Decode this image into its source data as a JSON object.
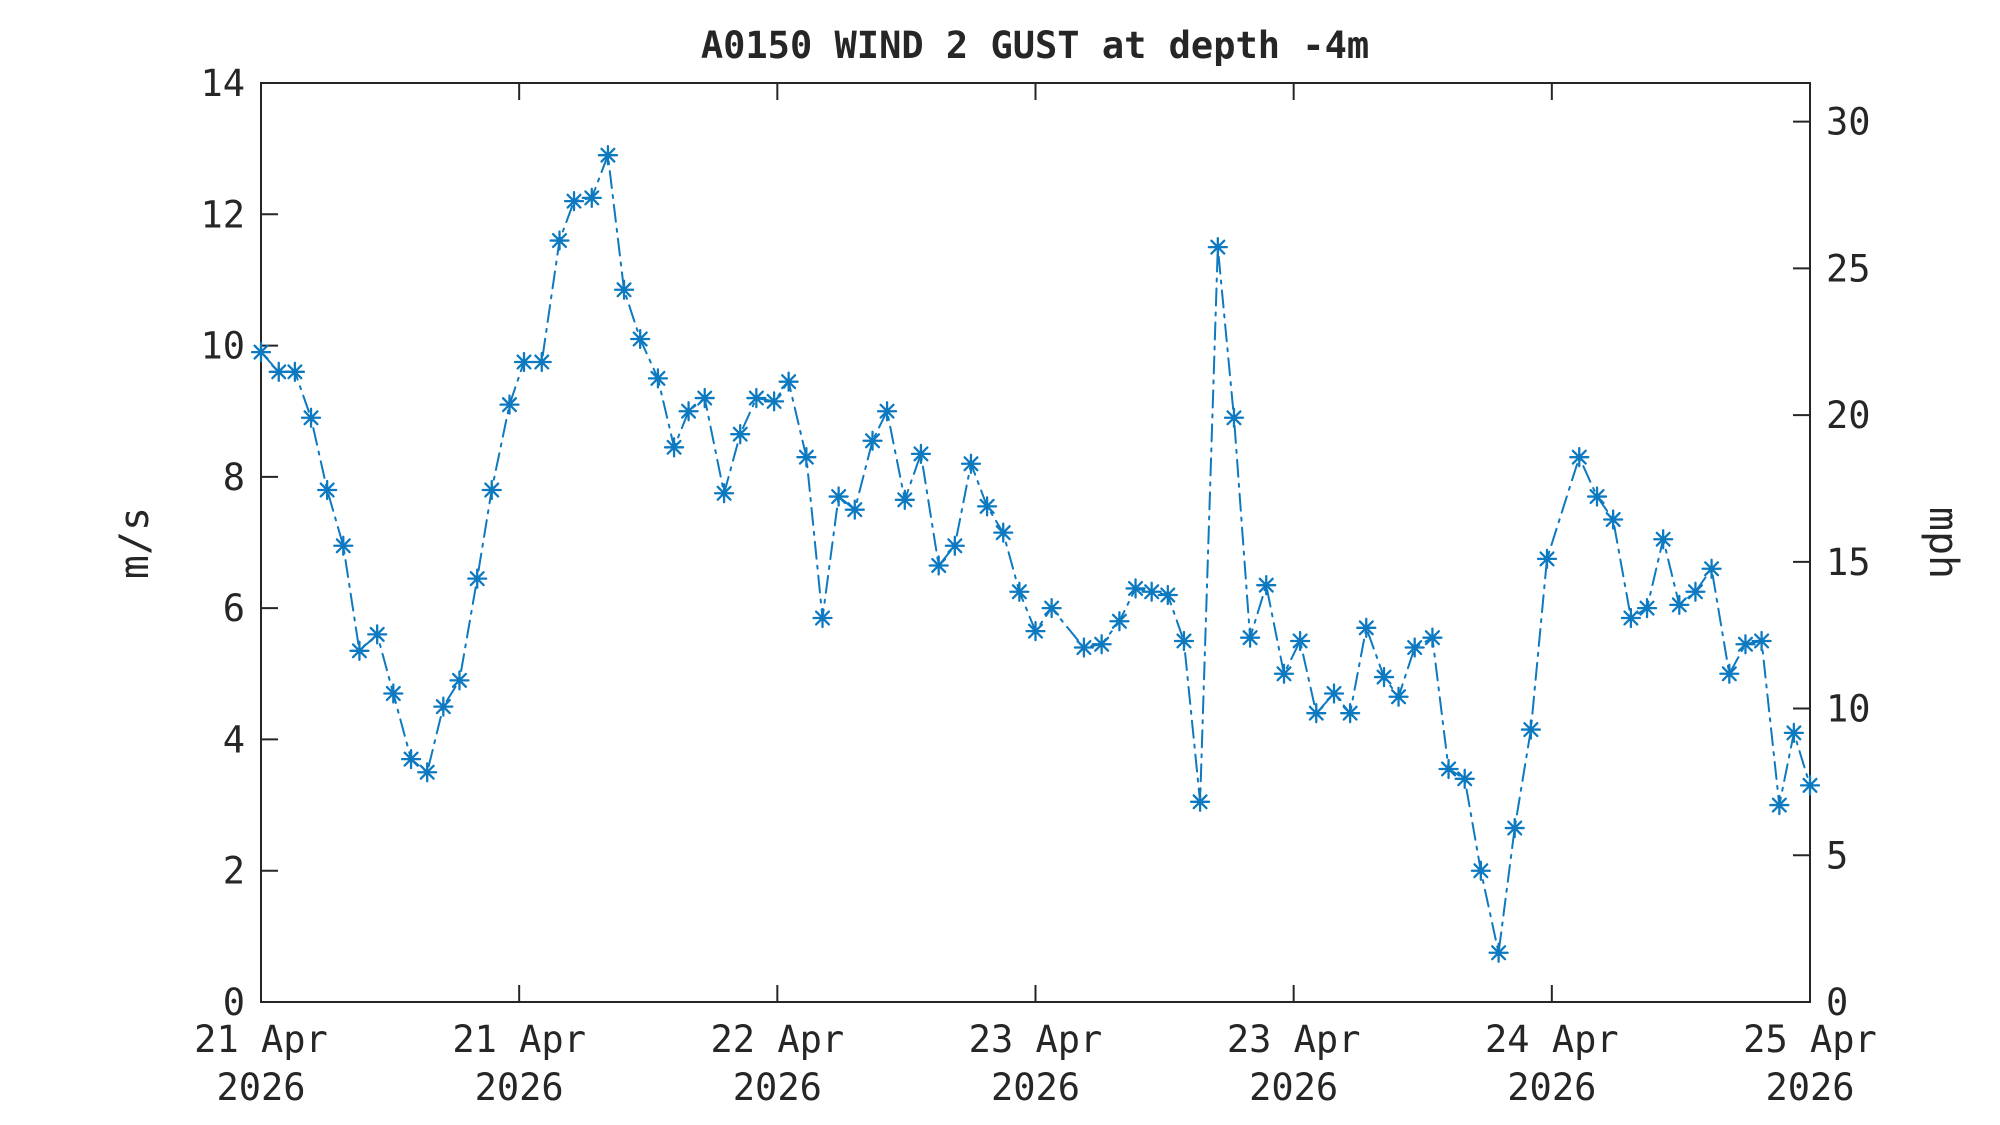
{
  "figure": {
    "background": "#ffffff",
    "axis_color": "#262626",
    "text_color": "#262626"
  },
  "chart_data": {
    "type": "line",
    "title": "A0150 WIND 2 GUST at depth -4m",
    "series_name": "WIND 2 GUST",
    "line_style": "dash-dot",
    "marker": "asterisk",
    "line_color": "#0d79c0",
    "legend_position": "none",
    "grid": false,
    "x_axis": {
      "unit": "hours from 21 Apr 2026 00:00",
      "range": [
        0,
        96
      ],
      "tick_positions_hours": [
        0,
        16,
        32,
        48,
        64,
        80,
        96
      ],
      "tick_labels": [
        {
          "line1": "21 Apr",
          "line2": "2026"
        },
        {
          "line1": "21 Apr",
          "line2": "2026"
        },
        {
          "line1": "22 Apr",
          "line2": "2026"
        },
        {
          "line1": "23 Apr",
          "line2": "2026"
        },
        {
          "line1": "23 Apr",
          "line2": "2026"
        },
        {
          "line1": "24 Apr",
          "line2": "2026"
        },
        {
          "line1": "25 Apr",
          "line2": "2026"
        }
      ]
    },
    "y_axis_left": {
      "label": "m/s",
      "range": [
        0,
        14
      ],
      "ticks": [
        0,
        2,
        4,
        6,
        8,
        10,
        12,
        14
      ]
    },
    "y_axis_right": {
      "label": "mph",
      "ticks": [
        0,
        5,
        10,
        15,
        20,
        25,
        30
      ],
      "mps_per_mph": 0.44704
    },
    "points": [
      [
        0,
        9.9
      ],
      [
        1.1,
        9.6
      ],
      [
        2.1,
        9.6
      ],
      [
        3.1,
        8.9
      ],
      [
        4.1,
        7.8
      ],
      [
        5.1,
        6.95
      ],
      [
        6.1,
        5.35
      ],
      [
        7.2,
        5.6
      ],
      [
        8.2,
        4.7
      ],
      [
        9.3,
        3.7
      ],
      [
        10.3,
        3.5
      ],
      [
        11.3,
        4.5
      ],
      [
        12.3,
        4.9
      ],
      [
        13.4,
        6.45
      ],
      [
        14.3,
        7.8
      ],
      [
        15.4,
        9.1
      ],
      [
        16.3,
        9.75
      ],
      [
        17.4,
        9.75
      ],
      [
        18.5,
        11.6
      ],
      [
        19.4,
        12.2
      ],
      [
        20.5,
        12.25
      ],
      [
        21.5,
        12.9
      ],
      [
        22.5,
        10.85
      ],
      [
        23.5,
        10.1
      ],
      [
        24.6,
        9.5
      ],
      [
        25.6,
        8.45
      ],
      [
        26.5,
        9.0
      ],
      [
        27.5,
        9.2
      ],
      [
        28.7,
        7.75
      ],
      [
        29.7,
        8.65
      ],
      [
        30.7,
        9.2
      ],
      [
        31.8,
        9.15
      ],
      [
        32.7,
        9.45
      ],
      [
        33.8,
        8.3
      ],
      [
        34.8,
        5.85
      ],
      [
        35.8,
        7.7
      ],
      [
        36.8,
        7.5
      ],
      [
        37.9,
        8.55
      ],
      [
        38.8,
        9.0
      ],
      [
        39.9,
        7.65
      ],
      [
        40.9,
        8.35
      ],
      [
        42,
        6.65
      ],
      [
        43,
        6.95
      ],
      [
        44,
        8.2
      ],
      [
        45,
        7.55
      ],
      [
        46,
        7.15
      ],
      [
        47,
        6.25
      ],
      [
        48,
        5.65
      ],
      [
        49,
        6.0
      ],
      [
        51,
        5.4
      ],
      [
        52.1,
        5.45
      ],
      [
        53.2,
        5.8
      ],
      [
        54.2,
        6.3
      ],
      [
        55.2,
        6.25
      ],
      [
        56.2,
        6.2
      ],
      [
        57.2,
        5.5
      ],
      [
        58.2,
        3.05
      ],
      [
        59.3,
        11.5
      ],
      [
        60.3,
        8.9
      ],
      [
        61.3,
        5.55
      ],
      [
        62.3,
        6.35
      ],
      [
        63.4,
        5.0
      ],
      [
        64.4,
        5.5
      ],
      [
        65.4,
        4.4
      ],
      [
        66.5,
        4.7
      ],
      [
        67.5,
        4.4
      ],
      [
        68.5,
        5.7
      ],
      [
        69.6,
        4.95
      ],
      [
        70.5,
        4.65
      ],
      [
        71.5,
        5.4
      ],
      [
        72.6,
        5.55
      ],
      [
        73.6,
        3.55
      ],
      [
        74.6,
        3.4
      ],
      [
        75.6,
        2.0
      ],
      [
        76.7,
        0.75
      ],
      [
        77.7,
        2.65
      ],
      [
        78.7,
        4.15
      ],
      [
        79.7,
        6.75
      ],
      [
        81.7,
        8.3
      ],
      [
        82.8,
        7.7
      ],
      [
        83.8,
        7.35
      ],
      [
        84.9,
        5.85
      ],
      [
        85.9,
        6.0
      ],
      [
        86.9,
        7.05
      ],
      [
        87.9,
        6.05
      ],
      [
        88.9,
        6.25
      ],
      [
        89.9,
        6.6
      ],
      [
        91,
        5.0
      ],
      [
        92,
        5.45
      ],
      [
        93,
        5.5
      ],
      [
        94.1,
        3.0
      ],
      [
        95,
        4.1
      ],
      [
        96,
        3.3
      ]
    ]
  }
}
